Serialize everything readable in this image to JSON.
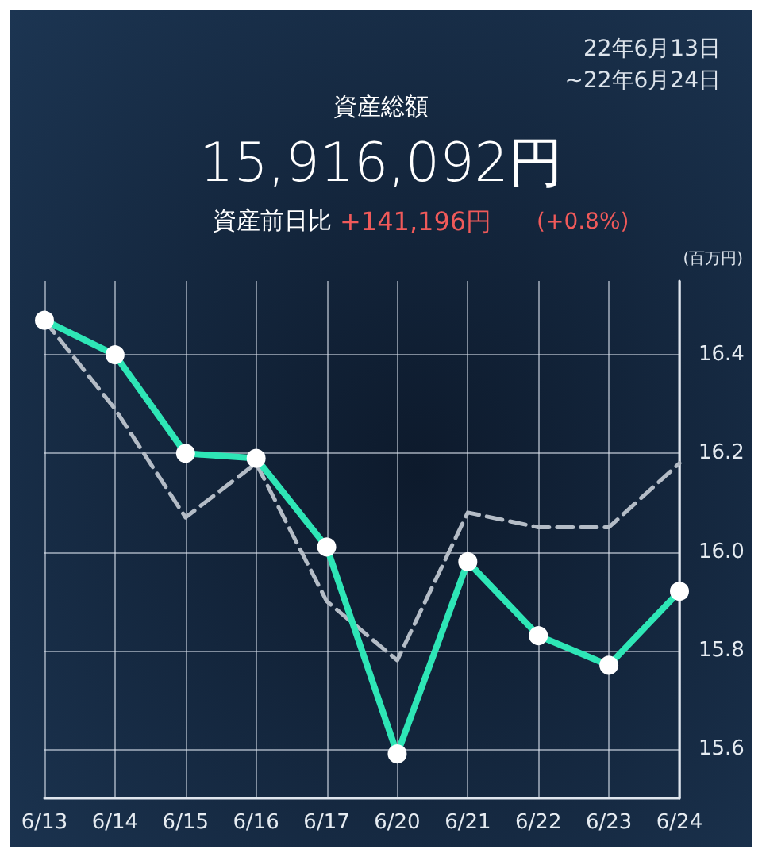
{
  "chart_data": {
    "type": "line",
    "title": "資産総額",
    "subtitle": "15,916,092円",
    "annotations": [
      "22年6月13日",
      "~22年6月24日",
      "資産前日比",
      "+141,196円",
      "(+0.8%)"
    ],
    "ylabel": "(百万円)",
    "categories": [
      "6/13",
      "6/14",
      "6/15",
      "6/16",
      "6/17",
      "6/20",
      "6/21",
      "6/22",
      "6/23",
      "6/24"
    ],
    "series": [
      {
        "color": "#b4bcc6",
        "line_style": "dashed",
        "marker": "none",
        "values": [
          16.47,
          16.29,
          16.07,
          16.18,
          15.9,
          15.78,
          16.08,
          16.05,
          16.05,
          16.18
        ]
      },
      {
        "color": "#2ee6b6",
        "line_style": "solid",
        "marker": "circle",
        "values": [
          16.47,
          16.4,
          16.2,
          16.19,
          16.01,
          15.59,
          15.98,
          15.83,
          15.77,
          15.92
        ]
      }
    ],
    "ylim": [
      15.5,
      16.55
    ],
    "yticks": [
      15.6,
      15.8,
      {
        "value": 16,
        "label": "16.0"
      },
      16.2,
      16.4
    ],
    "grid": true
  }
}
